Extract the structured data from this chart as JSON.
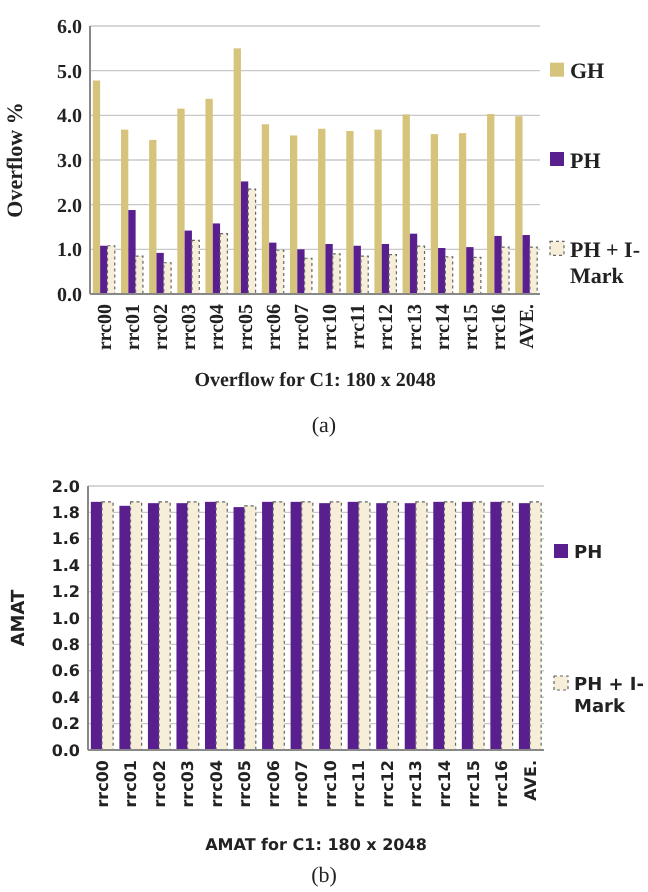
{
  "chart_data": [
    {
      "type": "bar",
      "xlabel": "Overflow for C1: 180 x 2048",
      "ylabel": "Overflow %",
      "annotations": [
        "(a)"
      ],
      "categories": [
        "rrc00",
        "rrc01",
        "rrc02",
        "rrc03",
        "rrc04",
        "rrc05",
        "rrc06",
        "rrc07",
        "rrc10",
        "rrc11",
        "rrc12",
        "rrc13",
        "rrc14",
        "rrc15",
        "rrc16",
        "AVE."
      ],
      "series": [
        {
          "name": "GH",
          "color": "#d6c47c",
          "values": [
            4.78,
            3.68,
            3.45,
            4.15,
            4.37,
            5.5,
            3.8,
            3.55,
            3.7,
            3.65,
            3.68,
            4.02,
            3.58,
            3.6,
            4.03,
            3.98
          ]
        },
        {
          "name": "PH",
          "color": "#5a1f8f",
          "values": [
            1.08,
            1.88,
            0.92,
            1.42,
            1.58,
            2.52,
            1.15,
            1.0,
            1.12,
            1.08,
            1.12,
            1.35,
            1.03,
            1.05,
            1.3,
            1.32
          ]
        },
        {
          "name": "PH + I-Mark",
          "color": "#f6eed9",
          "values": [
            1.08,
            0.85,
            0.7,
            1.2,
            1.35,
            2.35,
            0.98,
            0.8,
            0.9,
            0.85,
            0.88,
            1.07,
            0.83,
            0.82,
            1.05,
            1.05
          ]
        }
      ],
      "ylim": [
        0,
        6
      ],
      "yticks": [
        {
          "value": 0,
          "label": "0.0"
        },
        {
          "value": 1,
          "label": "1.0"
        },
        {
          "value": 2,
          "label": "2.0"
        },
        {
          "value": 3,
          "label": "3.0"
        },
        {
          "value": 4,
          "label": "4.0"
        },
        {
          "value": 5,
          "label": "5.0"
        },
        {
          "value": 6,
          "label": "6.0"
        }
      ],
      "grid": "y",
      "legend": "right"
    },
    {
      "type": "bar",
      "xlabel": "AMAT for C1: 180 x 2048",
      "ylabel": "AMAT",
      "annotations": [
        "(b)"
      ],
      "categories": [
        "rrc00",
        "rrc01",
        "rrc02",
        "rrc03",
        "rrc04",
        "rrc05",
        "rrc06",
        "rrc07",
        "rrc10",
        "rrc11",
        "rrc12",
        "rrc13",
        "rrc14",
        "rrc15",
        "rrc16",
        "AVE."
      ],
      "series": [
        {
          "name": "PH",
          "color": "#5a1f8f",
          "values": [
            1.88,
            1.85,
            1.87,
            1.87,
            1.88,
            1.84,
            1.88,
            1.88,
            1.87,
            1.88,
            1.87,
            1.87,
            1.88,
            1.88,
            1.88,
            1.87
          ]
        },
        {
          "name": "PH + I-Mark",
          "color": "#f6eed9",
          "values": [
            1.88,
            1.88,
            1.88,
            1.88,
            1.88,
            1.85,
            1.88,
            1.88,
            1.88,
            1.88,
            1.88,
            1.88,
            1.88,
            1.88,
            1.88,
            1.88
          ]
        }
      ],
      "ylim": [
        0,
        2
      ],
      "yticks": [
        {
          "value": 0,
          "label": "0.0"
        },
        {
          "value": 0.2,
          "label": "0.2"
        },
        {
          "value": 0.4,
          "label": "0.4"
        },
        {
          "value": 0.6,
          "label": "0.6"
        },
        {
          "value": 0.8,
          "label": "0.8"
        },
        {
          "value": 1,
          "label": "1.0"
        },
        {
          "value": 1.2,
          "label": "1.2"
        },
        {
          "value": 1.4,
          "label": "1.4"
        },
        {
          "value": 1.6,
          "label": "1.6"
        },
        {
          "value": 1.8,
          "label": "1.8"
        },
        {
          "value": 2,
          "label": "2.0"
        }
      ],
      "grid": "y",
      "legend": "right"
    }
  ]
}
